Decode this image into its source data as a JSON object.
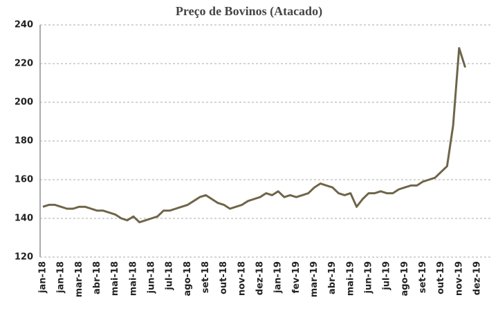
{
  "chart_data": {
    "type": "line",
    "title": "Preço de Bovinos (Atacado)",
    "categories": [
      "jan-18",
      null,
      null,
      "jan-18",
      null,
      null,
      "mar-18",
      null,
      null,
      "abr-18",
      null,
      null,
      "mai-18",
      null,
      null,
      "mai-18",
      null,
      null,
      "jun-18",
      null,
      null,
      "jul-18",
      null,
      null,
      "ago-18",
      null,
      null,
      "set-18",
      null,
      null,
      "out-18",
      null,
      null,
      "nov-18",
      null,
      null,
      "dez-18",
      null,
      null,
      "jan-19",
      null,
      null,
      "fev-19",
      null,
      null,
      "mar-19",
      null,
      null,
      "abr-19",
      null,
      null,
      "mai-19",
      null,
      null,
      "jun-19",
      null,
      null,
      "jul-19",
      null,
      null,
      "ago-19",
      null,
      null,
      "set-19",
      null,
      null,
      "out-19",
      null,
      null,
      "nov-19",
      null,
      null,
      "dez-19"
    ],
    "values": [
      146,
      147,
      147,
      146,
      145,
      145,
      146,
      146,
      145,
      144,
      144,
      143,
      142,
      140,
      139,
      141,
      138,
      139,
      140,
      141,
      144,
      144,
      145,
      146,
      147,
      149,
      151,
      152,
      150,
      148,
      147,
      145,
      146,
      147,
      149,
      150,
      151,
      153,
      152,
      154,
      151,
      152,
      151,
      152,
      153,
      156,
      158,
      157,
      156,
      153,
      152,
      153,
      146,
      150,
      153,
      153,
      154,
      153,
      153,
      155,
      156,
      157,
      157,
      159,
      160,
      161,
      164,
      167,
      188,
      228,
      218,
      null,
      null
    ],
    "color": "#6e6549",
    "ylim": [
      120,
      240
    ],
    "yticks": [
      120,
      140,
      160,
      180,
      200,
      220,
      240
    ],
    "grid": true
  }
}
